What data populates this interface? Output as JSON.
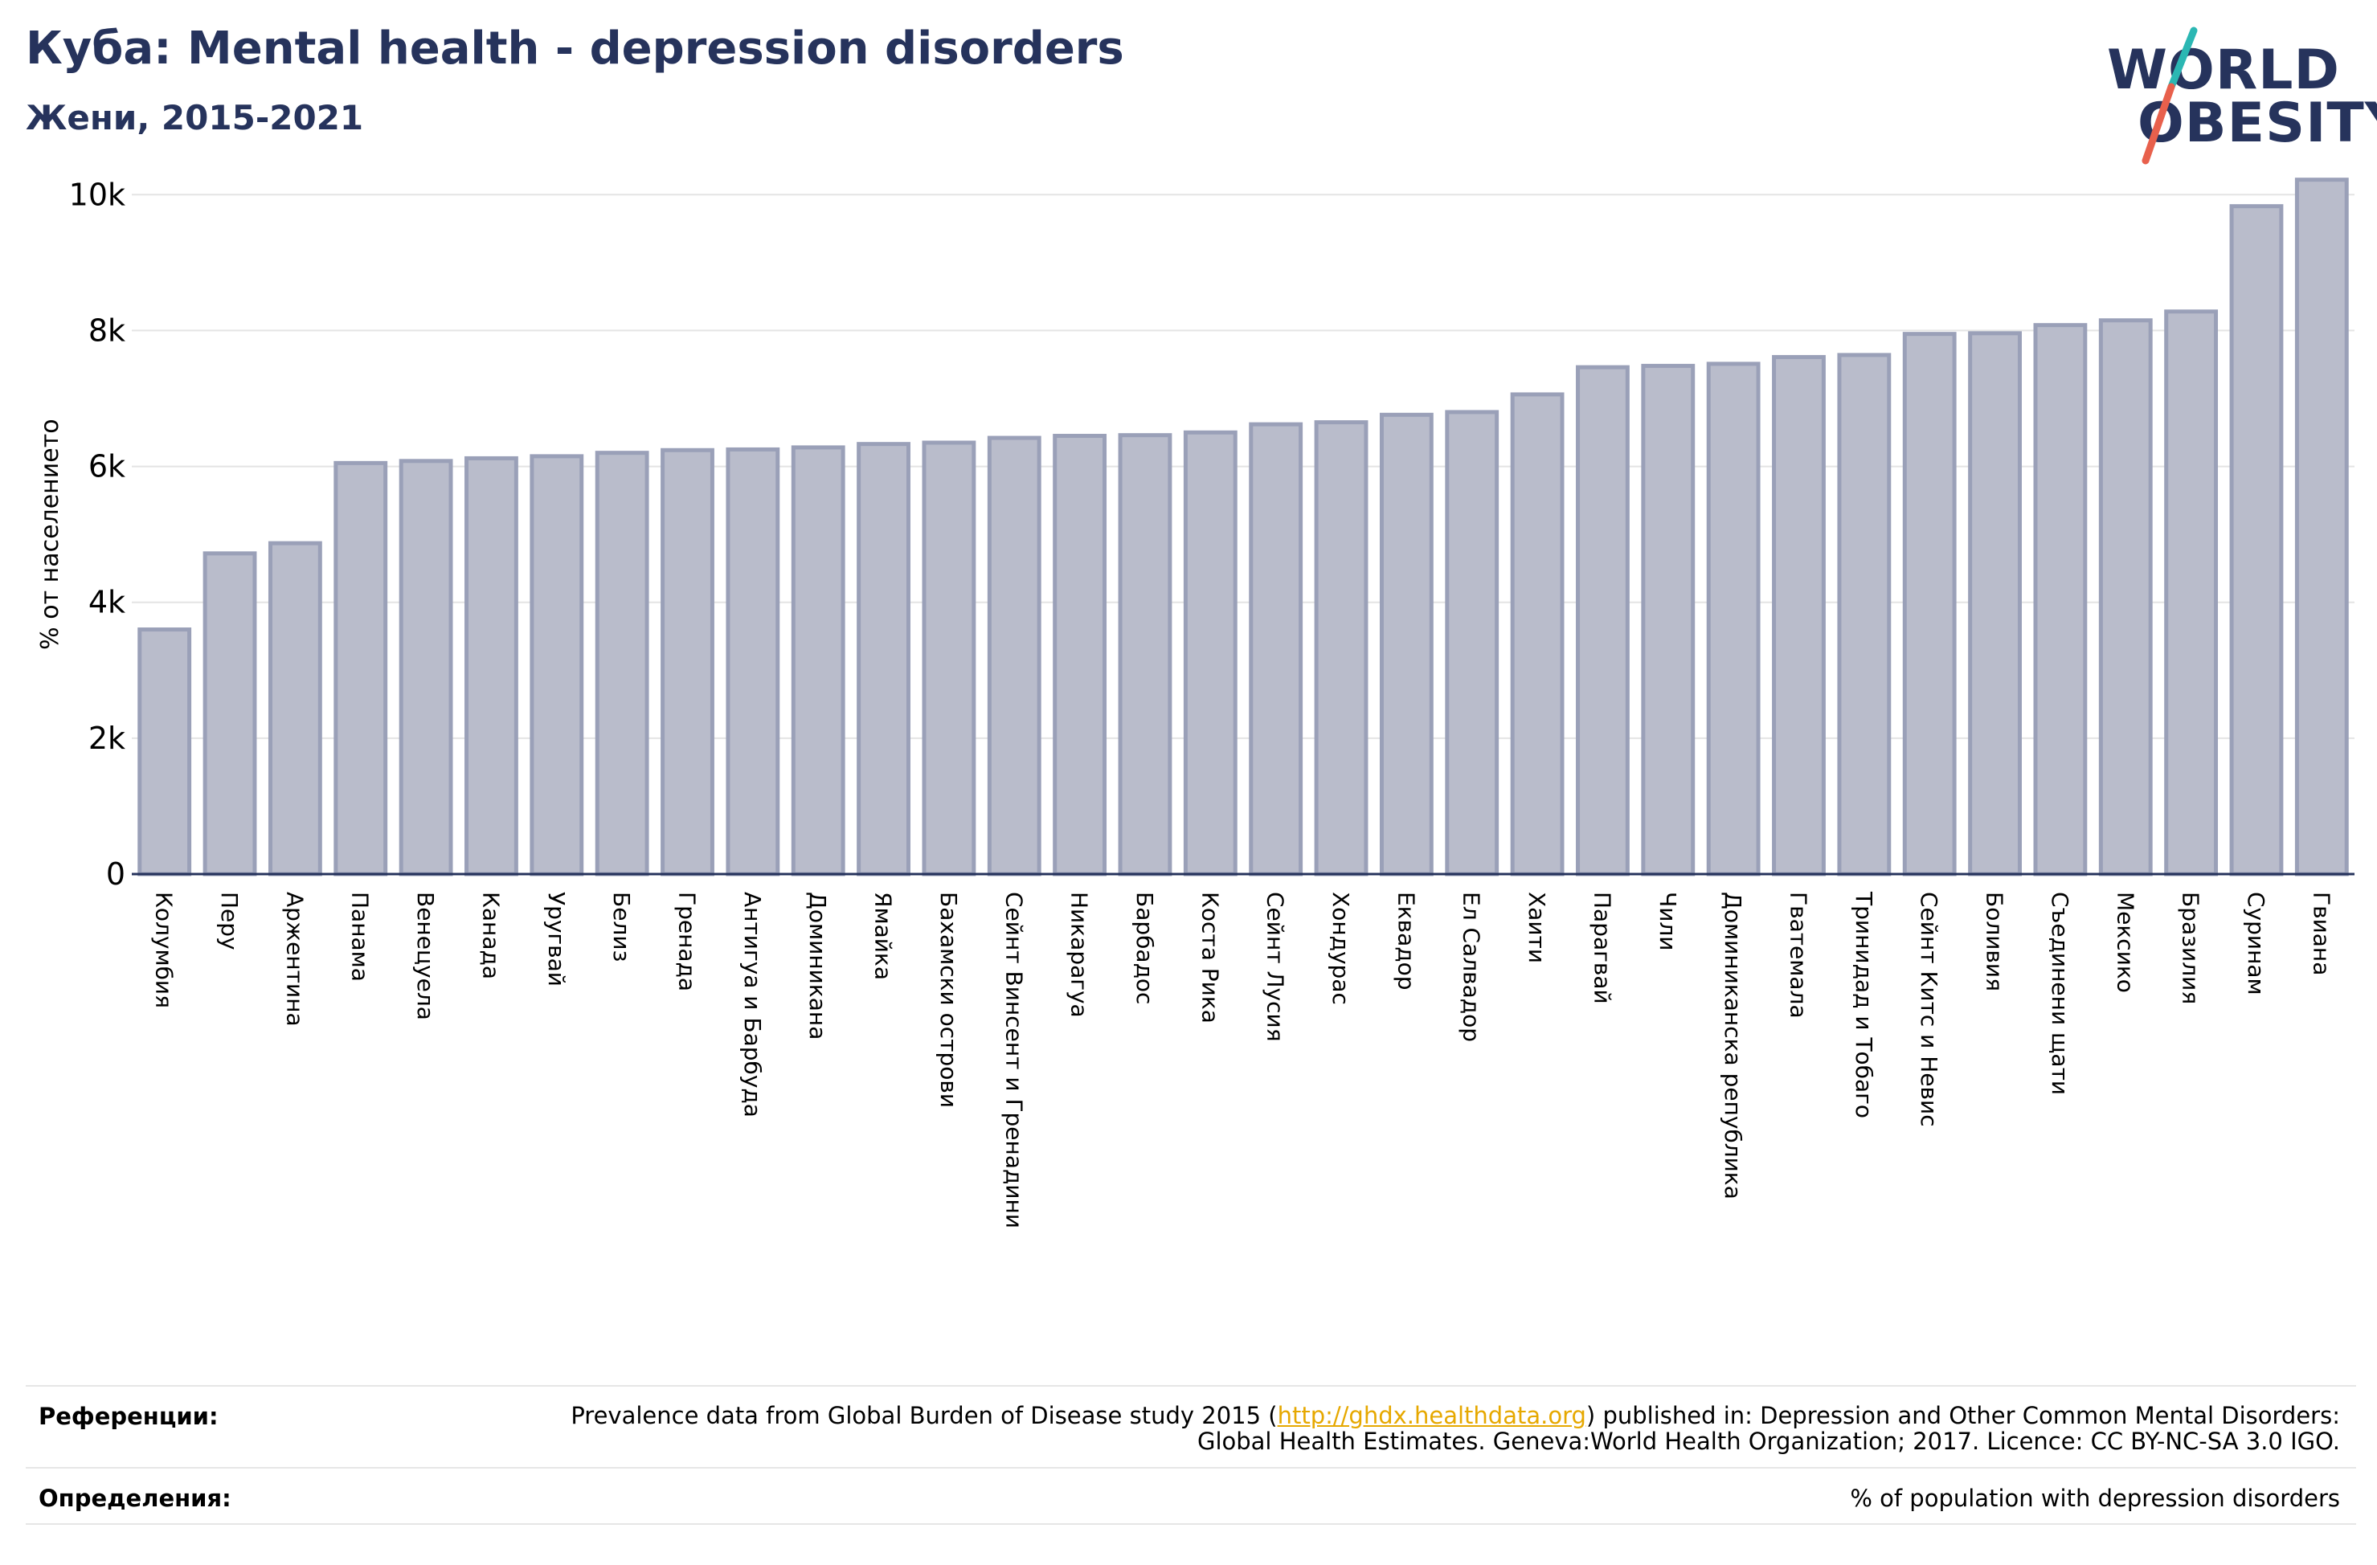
{
  "header": {
    "title": "Куба: Mental health - depression disorders",
    "subtitle": "Жени, 2015-2021"
  },
  "logo": {
    "line1": "WORLD",
    "line2": "OBESITY",
    "colors": {
      "text": "#26335c",
      "slash_top": "#2bb7b3",
      "slash_bottom": "#e8604c"
    }
  },
  "chart_data": {
    "type": "bar",
    "title": "",
    "xlabel": "",
    "ylabel": "% от населението",
    "ylim": [
      0,
      10500
    ],
    "yticks": [
      0,
      2000,
      4000,
      6000,
      8000,
      10000
    ],
    "ytick_labels": [
      "0",
      "2k",
      "4k",
      "6k",
      "8k",
      "10k"
    ],
    "grid": true,
    "bar_color": "#b9bccb",
    "bar_edge_color": "#9aa0b8",
    "categories": [
      "Колумбия",
      "Перу",
      "Аржентина",
      "Панама",
      "Венецуела",
      "Канада",
      "Уругвай",
      "Белиз",
      "Гренада",
      "Антигуа и Барбуда",
      "Доминикана",
      "Ямайка",
      "Бахамски острови",
      "Сейнт Винсент и Гренадини",
      "Никарагуа",
      "Барбадос",
      "Коста Рика",
      "Сейнт Лусия",
      "Хондурас",
      "Еквадор",
      "Ел Салвадор",
      "Хаити",
      "Парагвай",
      "Чили",
      "Доминиканска република",
      "Гватемала",
      "Тринидад и Тобаго",
      "Сейнт Китс и Невис",
      "Боливия",
      "Съединени щати",
      "Мексико",
      "Бразилия",
      "Суринам",
      "Гвиана"
    ],
    "values": [
      3600,
      4720,
      4870,
      6050,
      6080,
      6120,
      6150,
      6200,
      6240,
      6250,
      6280,
      6330,
      6350,
      6420,
      6450,
      6460,
      6500,
      6620,
      6650,
      6760,
      6800,
      7060,
      7460,
      7480,
      7510,
      7610,
      7640,
      7950,
      7960,
      8080,
      8150,
      8280,
      9830,
      10220
    ]
  },
  "footer": {
    "references_label": "Референции:",
    "references_text_before": "Prevalence data from Global Burden of Disease study 2015 (",
    "references_link": "http://ghdx.healthdata.org",
    "references_text_after": ") published in: Depression and Other Common Mental Disorders: Global Health Estimates. Geneva:World Health Organization; 2017. Licence: CC BY-NC-SA 3.0 IGO.",
    "definitions_label": "Определения:",
    "definitions_text": "% of population with depression disorders"
  }
}
